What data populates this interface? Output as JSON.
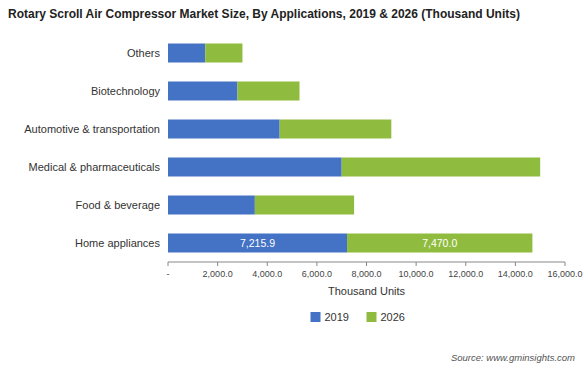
{
  "chart_data": {
    "type": "bar",
    "orientation": "horizontal",
    "stacked": true,
    "title": "Rotary Scroll Air Compressor Market Size, By Applications, 2019 & 2026 (Thousand Units)",
    "categories": [
      "Home appliances",
      "Food & beverage",
      "Medical & pharmaceuticals",
      "Automotive & transportation",
      "Biotechnology",
      "Others"
    ],
    "series": [
      {
        "name": "2019",
        "color": "#4472c4",
        "values": [
          7215.9,
          3500.0,
          7000.0,
          4500.0,
          2800.0,
          1500.0
        ],
        "value_labels": [
          "7,215.9",
          null,
          null,
          null,
          null,
          null
        ]
      },
      {
        "name": "2026",
        "color": "#8fbc3f",
        "values": [
          7470.0,
          4000.0,
          8000.0,
          4500.0,
          2500.0,
          1500.0
        ],
        "value_labels": [
          "7,470.0",
          null,
          null,
          null,
          null,
          null
        ]
      }
    ],
    "xlabel": "Thousand Units",
    "xlim": [
      0,
      16000
    ],
    "xticks": [
      {
        "value": 0,
        "label": "-"
      },
      {
        "value": 2000,
        "label": "2,000.0"
      },
      {
        "value": 4000,
        "label": "4,000.0"
      },
      {
        "value": 6000,
        "label": "6,000.0"
      },
      {
        "value": 8000,
        "label": "8,000.0"
      },
      {
        "value": 10000,
        "label": "10,000.0"
      },
      {
        "value": 12000,
        "label": "12,000.0"
      },
      {
        "value": 14000,
        "label": "14,000.0"
      },
      {
        "value": 16000,
        "label": "16,000.0"
      }
    ],
    "grid": false,
    "legend": "bottom",
    "source": "Source: www.gminsights.com"
  }
}
